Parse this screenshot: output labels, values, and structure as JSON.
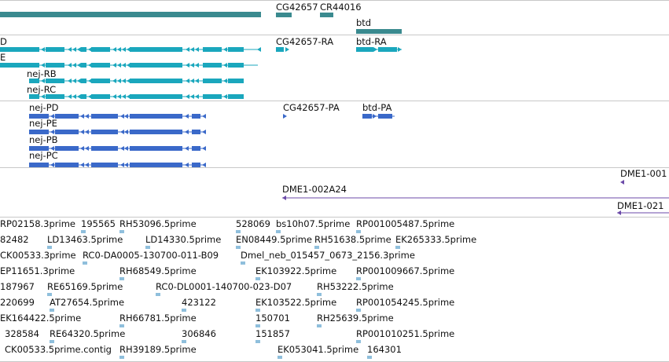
{
  "colors": {
    "gene": "#3a8a8f",
    "transcript": "#1aa7bd",
    "protein": "#3a69c9",
    "alignment": "#6b4aa8",
    "est": "#8fbfdc",
    "separator": "#c8c8c8"
  },
  "tracks": {
    "genes": {
      "labels": [
        "CG42657",
        "CR44016",
        "btd"
      ]
    },
    "transcripts": {
      "labels": [
        "D",
        "E",
        "nej-RB",
        "nej-RC",
        "CG42657-RA",
        "btd-RA"
      ]
    },
    "proteins": {
      "labels": [
        "nej-PD",
        "nej-PE",
        "nej-PB",
        "nej-PC",
        "CG42657-PA",
        "btd-PA"
      ]
    },
    "alignments": {
      "labels": [
        "DME1-001",
        "DME1-002A24",
        "DME1-021"
      ]
    },
    "ests": {
      "rows": [
        [
          "RP02158.3prime",
          "195565",
          "RH53096.5prime",
          "528069",
          "bs10h07.5prime",
          "RP001005487.5prime"
        ],
        [
          "82482",
          "LD13463.5prime",
          "LD14330.5prime",
          "EN08449.5prime",
          "RH51638.5prime",
          "EK265333.5prime"
        ],
        [
          "CK00533.3prime",
          "RC0-DA0005-130700-011-B09",
          "Dmel_neb_015457_0673_2156.3prime"
        ],
        [
          "EP11651.3prime",
          "RH68549.5prime",
          "EK103922.5prime",
          "RP001009667.5prime"
        ],
        [
          "187967",
          "RE65169.5prime",
          "RC0-DL0001-140700-023-D07",
          "RH53222.5prime"
        ],
        [
          "220699",
          "AT27654.5prime",
          "423122",
          "EK103522.5prime",
          "RP001054245.5prime"
        ],
        [
          "EK164422.5prime",
          "RH66781.5prime",
          "150701",
          "RH25639.5prime"
        ],
        [
          "328584",
          "RE64320.5prime",
          "306846",
          "151857",
          "RP001010251.5prime"
        ],
        [
          "CK00533.5prime.contig",
          "RH39189.5prime",
          "EK053041.5prime",
          "164301"
        ]
      ]
    }
  }
}
